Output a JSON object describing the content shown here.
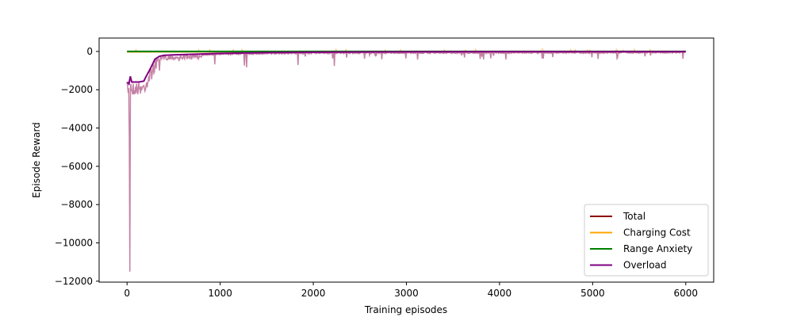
{
  "chart_data": {
    "type": "line",
    "title": "",
    "xlabel": "Training episodes",
    "ylabel": "Episode Reward",
    "xlim": [
      -300,
      6300
    ],
    "ylim": [
      -12050,
      700
    ],
    "xticks": [
      0,
      1000,
      2000,
      3000,
      4000,
      5000,
      6000
    ],
    "yticks": [
      -12000,
      -10000,
      -8000,
      -6000,
      -4000,
      -2000,
      0
    ],
    "ytick_labels": [
      "−12000",
      "−10000",
      "−8000",
      "−6000",
      "−4000",
      "−2000",
      "0"
    ],
    "grid": false,
    "legend_position": "bottom-right",
    "series": [
      {
        "name": "Total",
        "color": "#8b0000",
        "x": [
          0,
          6000
        ],
        "y": [
          -10,
          -10
        ]
      },
      {
        "name": "Charging Cost",
        "color": "#ffa500",
        "x": [
          0,
          500,
          1000,
          1500,
          2000,
          2500,
          3000,
          3500,
          4000,
          4500,
          5000,
          5500,
          6000
        ],
        "y": [
          -20,
          -15,
          -10,
          -8,
          -5,
          -5,
          -5,
          -4,
          -4,
          -4,
          -3,
          -3,
          -3
        ]
      },
      {
        "name": "Range Anxiety",
        "color": "#008000",
        "x": [
          0,
          6000
        ],
        "y": [
          0,
          0
        ]
      },
      {
        "name": "Overload",
        "color": "#800080",
        "x": [
          0,
          20,
          35,
          50,
          80,
          120,
          180,
          200,
          250,
          300,
          350,
          400,
          500,
          700,
          1000,
          1500,
          2000,
          3000,
          4000,
          5000,
          6000
        ],
        "y": [
          -1600,
          -1700,
          -1300,
          -1600,
          -1600,
          -1600,
          -1550,
          -1350,
          -900,
          -400,
          -250,
          -200,
          -180,
          -150,
          -100,
          -60,
          -40,
          -20,
          -10,
          -10,
          -10
        ]
      }
    ]
  }
}
